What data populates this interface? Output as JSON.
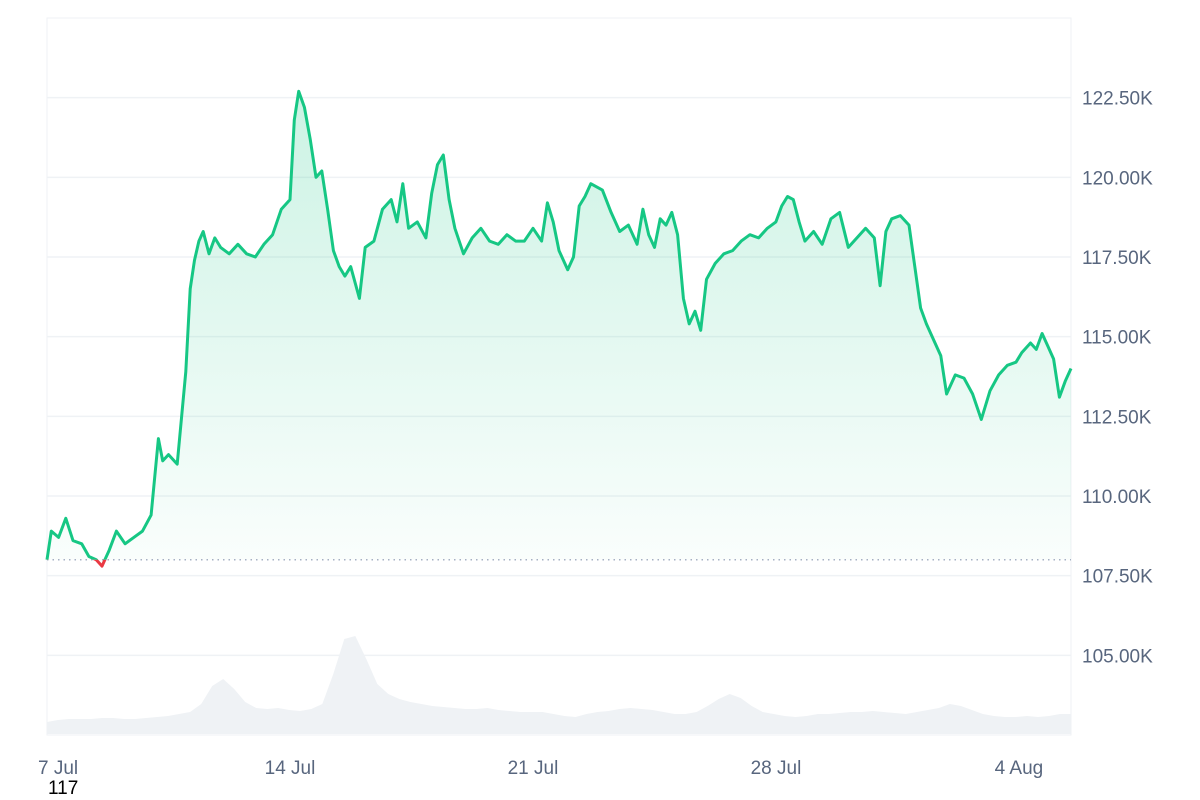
{
  "chart_data": {
    "type": "area",
    "title": "",
    "xlabel": "",
    "ylabel": "",
    "ylim": [
      102500,
      125000
    ],
    "grid": true,
    "legend": "none",
    "yticks": [
      {
        "value": 105000,
        "label": "105.00K"
      },
      {
        "value": 107500,
        "label": "107.50K"
      },
      {
        "value": 110000,
        "label": "110.00K"
      },
      {
        "value": 112500,
        "label": "112.50K"
      },
      {
        "value": 115000,
        "label": "115.00K"
      },
      {
        "value": 117500,
        "label": "117.50K"
      },
      {
        "value": 120000,
        "label": "120.00K"
      },
      {
        "value": 122500,
        "label": "122.50K"
      }
    ],
    "xticks": [
      {
        "value": "2025-07-07",
        "label": "7 Jul"
      },
      {
        "value": "2025-07-14",
        "label": "14 Jul"
      },
      {
        "value": "2025-07-21",
        "label": "21 Jul"
      },
      {
        "value": "2025-07-28",
        "label": "28 Jul"
      },
      {
        "value": "2025-08-04",
        "label": "4 Aug"
      }
    ],
    "xlim": [
      "2025-07-07T00:00",
      "2025-08-05T12:00"
    ],
    "baseline": 108000,
    "colors": {
      "up": "#16c784",
      "down": "#ea3943",
      "grid": "#eff2f5",
      "volume": "#eff2f5"
    },
    "series": [
      {
        "points": [
          [
            "2025-07-07T00:00",
            108000
          ],
          [
            "2025-07-07T03:00",
            108900
          ],
          [
            "2025-07-07T08:00",
            108700
          ],
          [
            "2025-07-07T13:00",
            109300
          ],
          [
            "2025-07-07T18:00",
            108600
          ],
          [
            "2025-07-08T00:00",
            108500
          ],
          [
            "2025-07-08T05:00",
            108100
          ],
          [
            "2025-07-08T10:00",
            108000
          ],
          [
            "2025-07-08T14:00",
            107800
          ],
          [
            "2025-07-08T19:00",
            108300
          ],
          [
            "2025-07-09T00:00",
            108900
          ],
          [
            "2025-07-09T06:00",
            108500
          ],
          [
            "2025-07-09T12:00",
            108700
          ],
          [
            "2025-07-09T18:00",
            108900
          ],
          [
            "2025-07-10T00:00",
            109400
          ],
          [
            "2025-07-10T05:00",
            111800
          ],
          [
            "2025-07-10T08:00",
            111100
          ],
          [
            "2025-07-10T12:00",
            111300
          ],
          [
            "2025-07-10T18:00",
            111000
          ],
          [
            "2025-07-11T00:00",
            113900
          ],
          [
            "2025-07-11T03:00",
            116500
          ],
          [
            "2025-07-11T06:00",
            117400
          ],
          [
            "2025-07-11T09:00",
            118000
          ],
          [
            "2025-07-11T12:00",
            118300
          ],
          [
            "2025-07-11T16:00",
            117600
          ],
          [
            "2025-07-11T20:00",
            118100
          ],
          [
            "2025-07-12T00:00",
            117800
          ],
          [
            "2025-07-12T06:00",
            117600
          ],
          [
            "2025-07-12T12:00",
            117900
          ],
          [
            "2025-07-12T18:00",
            117600
          ],
          [
            "2025-07-13T00:00",
            117500
          ],
          [
            "2025-07-13T06:00",
            117900
          ],
          [
            "2025-07-13T12:00",
            118200
          ],
          [
            "2025-07-13T18:00",
            119000
          ],
          [
            "2025-07-14T00:00",
            119300
          ],
          [
            "2025-07-14T03:00",
            121800
          ],
          [
            "2025-07-14T06:00",
            122700
          ],
          [
            "2025-07-14T10:00",
            122200
          ],
          [
            "2025-07-14T14:00",
            121200
          ],
          [
            "2025-07-14T18:00",
            120000
          ],
          [
            "2025-07-14T22:00",
            120200
          ],
          [
            "2025-07-15T02:00",
            119000
          ],
          [
            "2025-07-15T06:00",
            117700
          ],
          [
            "2025-07-15T10:00",
            117200
          ],
          [
            "2025-07-15T14:00",
            116900
          ],
          [
            "2025-07-15T18:00",
            117200
          ],
          [
            "2025-07-16T00:00",
            116200
          ],
          [
            "2025-07-16T04:00",
            117800
          ],
          [
            "2025-07-16T10:00",
            118000
          ],
          [
            "2025-07-16T16:00",
            119000
          ],
          [
            "2025-07-16T22:00",
            119300
          ],
          [
            "2025-07-17T02:00",
            118600
          ],
          [
            "2025-07-17T06:00",
            119800
          ],
          [
            "2025-07-17T10:00",
            118400
          ],
          [
            "2025-07-17T16:00",
            118600
          ],
          [
            "2025-07-17T22:00",
            118100
          ],
          [
            "2025-07-18T02:00",
            119500
          ],
          [
            "2025-07-18T06:00",
            120400
          ],
          [
            "2025-07-18T10:00",
            120700
          ],
          [
            "2025-07-18T14:00",
            119300
          ],
          [
            "2025-07-18T18:00",
            118400
          ],
          [
            "2025-07-19T00:00",
            117600
          ],
          [
            "2025-07-19T06:00",
            118100
          ],
          [
            "2025-07-19T12:00",
            118400
          ],
          [
            "2025-07-19T18:00",
            118000
          ],
          [
            "2025-07-20T00:00",
            117900
          ],
          [
            "2025-07-20T06:00",
            118200
          ],
          [
            "2025-07-20T12:00",
            118000
          ],
          [
            "2025-07-20T18:00",
            118000
          ],
          [
            "2025-07-21T00:00",
            118400
          ],
          [
            "2025-07-21T06:00",
            118000
          ],
          [
            "2025-07-21T10:00",
            119200
          ],
          [
            "2025-07-21T14:00",
            118600
          ],
          [
            "2025-07-21T18:00",
            117700
          ],
          [
            "2025-07-22T00:00",
            117100
          ],
          [
            "2025-07-22T04:00",
            117500
          ],
          [
            "2025-07-22T08:00",
            119100
          ],
          [
            "2025-07-22T12:00",
            119400
          ],
          [
            "2025-07-22T16:00",
            119800
          ],
          [
            "2025-07-23T00:00",
            119600
          ],
          [
            "2025-07-23T06:00",
            118900
          ],
          [
            "2025-07-23T12:00",
            118300
          ],
          [
            "2025-07-23T18:00",
            118500
          ],
          [
            "2025-07-24T00:00",
            117900
          ],
          [
            "2025-07-24T04:00",
            119000
          ],
          [
            "2025-07-24T08:00",
            118200
          ],
          [
            "2025-07-24T12:00",
            117800
          ],
          [
            "2025-07-24T16:00",
            118700
          ],
          [
            "2025-07-24T20:00",
            118500
          ],
          [
            "2025-07-25T00:00",
            118900
          ],
          [
            "2025-07-25T04:00",
            118200
          ],
          [
            "2025-07-25T08:00",
            116200
          ],
          [
            "2025-07-25T12:00",
            115400
          ],
          [
            "2025-07-25T16:00",
            115800
          ],
          [
            "2025-07-25T20:00",
            115200
          ],
          [
            "2025-07-26T00:00",
            116800
          ],
          [
            "2025-07-26T06:00",
            117300
          ],
          [
            "2025-07-26T12:00",
            117600
          ],
          [
            "2025-07-26T18:00",
            117700
          ],
          [
            "2025-07-27T00:00",
            118000
          ],
          [
            "2025-07-27T06:00",
            118200
          ],
          [
            "2025-07-27T12:00",
            118100
          ],
          [
            "2025-07-27T18:00",
            118400
          ],
          [
            "2025-07-28T00:00",
            118600
          ],
          [
            "2025-07-28T04:00",
            119100
          ],
          [
            "2025-07-28T08:00",
            119400
          ],
          [
            "2025-07-28T12:00",
            119300
          ],
          [
            "2025-07-28T16:00",
            118600
          ],
          [
            "2025-07-28T20:00",
            118000
          ],
          [
            "2025-07-29T02:00",
            118300
          ],
          [
            "2025-07-29T08:00",
            117900
          ],
          [
            "2025-07-29T14:00",
            118700
          ],
          [
            "2025-07-29T20:00",
            118900
          ],
          [
            "2025-07-30T02:00",
            117800
          ],
          [
            "2025-07-30T08:00",
            118100
          ],
          [
            "2025-07-30T14:00",
            118400
          ],
          [
            "2025-07-30T20:00",
            118100
          ],
          [
            "2025-07-31T00:00",
            116600
          ],
          [
            "2025-07-31T04:00",
            118300
          ],
          [
            "2025-07-31T08:00",
            118700
          ],
          [
            "2025-07-31T14:00",
            118800
          ],
          [
            "2025-07-31T20:00",
            118500
          ],
          [
            "2025-08-01T00:00",
            117200
          ],
          [
            "2025-08-01T04:00",
            115900
          ],
          [
            "2025-08-01T08:00",
            115400
          ],
          [
            "2025-08-01T12:00",
            115000
          ],
          [
            "2025-08-01T18:00",
            114400
          ],
          [
            "2025-08-01T22:00",
            113200
          ],
          [
            "2025-08-02T04:00",
            113800
          ],
          [
            "2025-08-02T10:00",
            113700
          ],
          [
            "2025-08-02T16:00",
            113200
          ],
          [
            "2025-08-02T22:00",
            112400
          ],
          [
            "2025-08-03T04:00",
            113300
          ],
          [
            "2025-08-03T10:00",
            113800
          ],
          [
            "2025-08-03T16:00",
            114100
          ],
          [
            "2025-08-03T22:00",
            114200
          ],
          [
            "2025-08-04T02:00",
            114500
          ],
          [
            "2025-08-04T08:00",
            114800
          ],
          [
            "2025-08-04T12:00",
            114600
          ],
          [
            "2025-08-04T16:00",
            115100
          ],
          [
            "2025-08-04T20:00",
            114700
          ],
          [
            "2025-08-05T00:00",
            114300
          ],
          [
            "2025-08-05T04:00",
            113100
          ],
          [
            "2025-08-05T08:00",
            113600
          ],
          [
            "2025-08-05T12:00",
            114000
          ]
        ]
      }
    ],
    "volume": [
      0.12,
      0.14,
      0.15,
      0.15,
      0.15,
      0.16,
      0.16,
      0.15,
      0.15,
      0.16,
      0.17,
      0.18,
      0.2,
      0.22,
      0.3,
      0.48,
      0.55,
      0.45,
      0.32,
      0.26,
      0.25,
      0.26,
      0.24,
      0.23,
      0.25,
      0.3,
      0.6,
      0.95,
      0.98,
      0.75,
      0.5,
      0.4,
      0.35,
      0.32,
      0.3,
      0.28,
      0.27,
      0.26,
      0.25,
      0.25,
      0.26,
      0.24,
      0.23,
      0.22,
      0.22,
      0.22,
      0.2,
      0.18,
      0.17,
      0.2,
      0.22,
      0.23,
      0.25,
      0.26,
      0.25,
      0.24,
      0.22,
      0.2,
      0.2,
      0.22,
      0.28,
      0.35,
      0.4,
      0.36,
      0.28,
      0.22,
      0.2,
      0.18,
      0.17,
      0.18,
      0.2,
      0.2,
      0.21,
      0.22,
      0.22,
      0.23,
      0.22,
      0.21,
      0.2,
      0.22,
      0.24,
      0.26,
      0.3,
      0.28,
      0.24,
      0.2,
      0.18,
      0.17,
      0.17,
      0.18,
      0.17,
      0.18,
      0.2,
      0.2
    ],
    "footer_label": "117"
  }
}
